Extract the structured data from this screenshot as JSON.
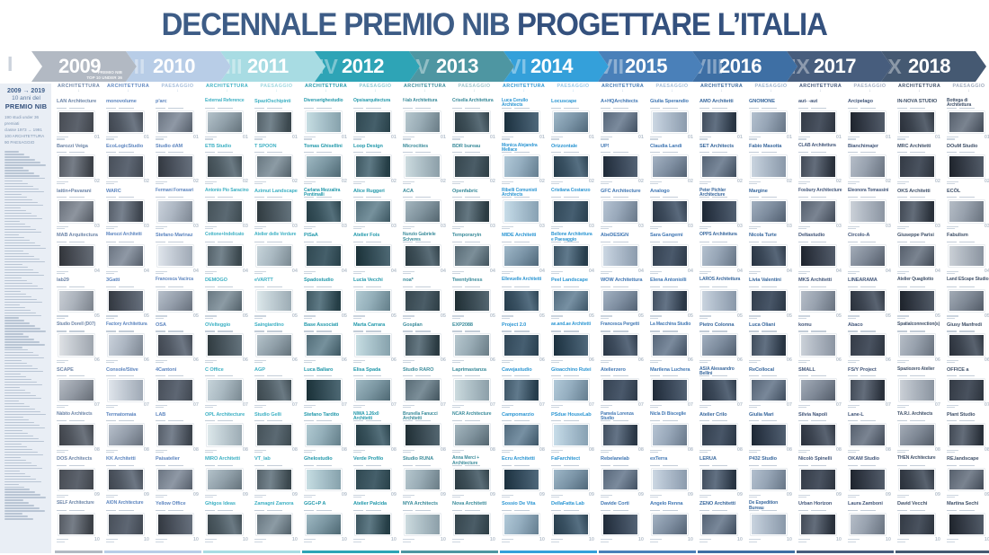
{
  "title": {
    "regular": "DECENNALE PREMIO NIB",
    "bold": "PROGETTARE L’ITALIA"
  },
  "column_headers": {
    "architettura": "ARCHITETTURA",
    "paesaggio": "PAESAGGIO",
    "arrow": "↓"
  },
  "numbers": [
    "01",
    "02",
    "03",
    "04",
    "05",
    "06",
    "07",
    "08",
    "09",
    "10"
  ],
  "sidebar": {
    "range": "2009 → 2019",
    "line2": "10 anni del",
    "line3": "PREMIO NIB",
    "stats": [
      "190 studi under 36 premiati",
      "classe 1973 → 1991",
      "100 ARCHITETTURA",
      "90 PAESAGGIO"
    ]
  },
  "timeline_caption": [
    "PREMIO NIB",
    "TOP 10 UNDER 36"
  ],
  "years": [
    {
      "year": "2009",
      "numeral": "I",
      "color": "#b2b9c3",
      "accent": "#6f87a9",
      "muted": "#a9b6c6",
      "columns": [
        {
          "type": "ARCHITETTURA",
          "entries": [
            "LAN Architecture",
            "Barozzi Veiga",
            "lattin+Pavarani",
            "MAB Arquitectura",
            "lab29",
            "Studio Dorell (D07)",
            "SCAPE",
            "Nàbito Architects",
            "DOS Architects",
            "SELF Architecture"
          ]
        }
      ]
    },
    {
      "year": "2010",
      "numeral": "II",
      "color": "#b8cde7",
      "accent": "#5f87c0",
      "muted": "#a7bedb",
      "columns": [
        {
          "type": "ARCHITETTURA",
          "entries": [
            "monovolume",
            "EcoLogicStudio",
            "WARC",
            "Marozzi Architetti",
            "3Gatti",
            "Factory Architettura",
            "Console/Stive",
            "Termatomaia",
            "KK Architetti",
            "AION Architecture"
          ]
        },
        {
          "type": "PAESAGGIO",
          "entries": [
            "p'arc",
            "Studio dAM",
            "Fermani Fornasari",
            "Stefano Marinaz",
            "Francesca Vacirca",
            "OSA",
            "4Cantoni",
            "LAB",
            "Paisatelier",
            "Yellow Office"
          ]
        }
      ]
    },
    {
      "year": "2011",
      "numeral": "III",
      "color": "#a8dce3",
      "accent": "#3fb1c4",
      "muted": "#9ed7e0",
      "columns": [
        {
          "type": "ARCHITETTURA",
          "entries": [
            "External Reference",
            "ETB Studio",
            "Antonio Pio Saracino",
            "Cottone+Indelicato",
            "DEMOGO",
            "OVelteggio",
            "C Office",
            "OPL Architecture",
            "MIRO Architetti",
            "Ghigos Ideas"
          ]
        },
        {
          "type": "PAESAGGIO",
          "entries": [
            "SpaziOschipinti",
            "T SPOON",
            "Azimut Landscape",
            "Atelier delle Verdure",
            "eVARTT",
            "Saingiardino",
            "AGP",
            "Studio Gelli",
            "VT_lab",
            "Zamagni Zamora"
          ]
        }
      ]
    },
    {
      "year": "2012",
      "numeral": "IV",
      "color": "#2ea4b6",
      "accent": "#259aac",
      "muted": "#8cc9d3",
      "columns": [
        {
          "type": "ARCHITETTURA",
          "entries": [
            "Diverserighestudio",
            "Tomas Ghisellini",
            "Carlana Mezzalira Pentimalli",
            "PiSaA",
            "Spadostudio",
            "Base Associati",
            "Luca Ballaro",
            "Stefano Tardito",
            "Ghelostudio",
            "GGC+P A"
          ]
        },
        {
          "type": "PAESAGGIO",
          "entries": [
            "Opsisarquitectura",
            "Loop Design",
            "Alice Ruggeri",
            "Atelier Fois",
            "Lucia Vecchi",
            "Marta Carrara",
            "Elisa Spada",
            "NIWA 1.26x0 Architetti",
            "Verde Profilo",
            "Atelier Palcida"
          ]
        }
      ]
    },
    {
      "year": "2013",
      "numeral": "V",
      "color": "#4e96a2",
      "accent": "#3d8d9c",
      "muted": "#9ec4cc",
      "columns": [
        {
          "type": "ARCHITETTURA",
          "entries": [
            "f-lab Architettura",
            "Microcities",
            "ACA",
            "Nunzio Gabriele Sciveres",
            "noa*",
            "Gosplan",
            "Studio RARO",
            "Brunella Fanucci Architetti",
            "Studio RUNA",
            "MYA Architects"
          ]
        },
        {
          "type": "PAESAGGIO",
          "entries": [
            "Crisella Architettura",
            "BDR bureau",
            "Openfabric",
            "Temporaryin",
            "Twentyliness",
            "EXP2088",
            "Laprimastanza",
            "NCAR Architecture",
            "Anna Merci + Architecture",
            "Nova Architetti"
          ]
        }
      ]
    },
    {
      "year": "2014",
      "numeral": "VI",
      "color": "#34a0da",
      "accent": "#2e97d3",
      "muted": "#97c8e8",
      "columns": [
        {
          "type": "ARCHITETTURA",
          "entries": [
            "Luca Cerullo Architects",
            "Monica Alejandra Mellace",
            "Ribelli Comunisti Architects",
            "MIDE Architetti",
            "Ellevuelle Architetti",
            "Project 2.0",
            "Cavejastudio",
            "Campomarzio",
            "Ecru Architetti",
            "Sossio De Vita"
          ]
        },
        {
          "type": "PAESAGGIO",
          "entries": [
            "Locuscape",
            "Orizzontale",
            "Cristiana Costanzo",
            "Bellone Architettura e Paesaggio",
            "Peel Landscape",
            "ae.and.ae Architetti",
            "Gioacchino Rutei",
            "PSdue HouseLab",
            "FaFarchitect",
            "DellaFatta Lab"
          ]
        }
      ]
    },
    {
      "year": "2015",
      "numeral": "VII",
      "color": "#4a80b9",
      "accent": "#4278b4",
      "muted": "#a2bcd9",
      "columns": [
        {
          "type": "ARCHITETTURA",
          "entries": [
            "A+HQArchitects",
            "UP!",
            "GFC Architecture",
            "AbeDESIGN",
            "WOW Architettura",
            "Francesca Pergetti",
            "Atelierzero",
            "Pamela Lorenza Studio",
            "Rebelanelab",
            "Davide Corti"
          ]
        },
        {
          "type": "PAESAGGIO",
          "entries": [
            "Giulia Sperandio",
            "Claudia Landi",
            "Analogo",
            "Sara Gangemi",
            "Elena Antoniolli",
            "La Macchina Studio",
            "Marilena Luchera",
            "Nicla Di Bisceglie",
            "exTerra",
            "Angelo Renna"
          ]
        }
      ]
    },
    {
      "year": "2016",
      "numeral": "VIII",
      "color": "#3e6fa4",
      "accent": "#3a699e",
      "muted": "#9db4cf",
      "columns": [
        {
          "type": "ARCHITETTURA",
          "entries": [
            "AMO Architetti",
            "SET Architects",
            "Peter Pichler Architecture",
            "OPPS Architettura",
            "LAROS Architettura",
            "Pietro Colonna",
            "AS/A Alessandro Bellini",
            "Atelier Crilo",
            "LERUA",
            "ZENO Architetti"
          ]
        },
        {
          "type": "PAESAGGIO",
          "entries": [
            "GNOMONE",
            "Fabio Masotta",
            "Margine",
            "Nicola Turte",
            "Livia Valentini",
            "Luca Oliani",
            "ReCollocal",
            "Giulia Mari",
            "P432 Studio",
            "De Expedition Bureau"
          ]
        }
      ]
    },
    {
      "year": "2017",
      "numeral": "IX",
      "color": "#475d7d",
      "accent": "#44587b",
      "muted": "#a3aec2",
      "columns": [
        {
          "type": "ARCHITETTURA",
          "entries": [
            "aut- -aut",
            "CLAB Architettura",
            "Fosbury Architecture",
            "Deltastudio",
            "MKS Architetti",
            "komu",
            "SMALL",
            "Silvia Napoli",
            "Nicolò Spinelli",
            "Urban Horizon"
          ]
        },
        {
          "type": "PAESAGGIO",
          "entries": [
            "Arcipelago",
            "Bianchimajer",
            "Eleonora Tomassini",
            "Circolo-A",
            "LINEARAMA",
            "Abaco",
            "FS/Y Project",
            "Lane-L",
            "OKAM Studio",
            "Laura Zamboni"
          ]
        }
      ]
    },
    {
      "year": "2018",
      "numeral": "X",
      "color": "#455972",
      "accent": "#42536b",
      "muted": "#a0abbd",
      "columns": [
        {
          "type": "ARCHITETTURA",
          "entries": [
            "IN-NOVA STUDIO",
            "MRC Architetti",
            "OKS Architetti",
            "Giuseppe Parisi",
            "Atelier Quagliotto",
            "Spatialconnection(s)",
            "Spaziozero Atelier",
            "TA.R.I. Architects",
            "THEN Architecture",
            "David Vecchi"
          ]
        },
        {
          "type": "PAESAGGIO",
          "entries": [
            "Bottega di Architettura",
            "DOuM Studio",
            "ECÒL",
            "Fabulism",
            "Land EScape Studio",
            "Giusy Manfredi",
            "OFFICE a",
            "Plant Studio",
            "RE.landscape",
            "Martina Sechi"
          ]
        }
      ]
    }
  ]
}
